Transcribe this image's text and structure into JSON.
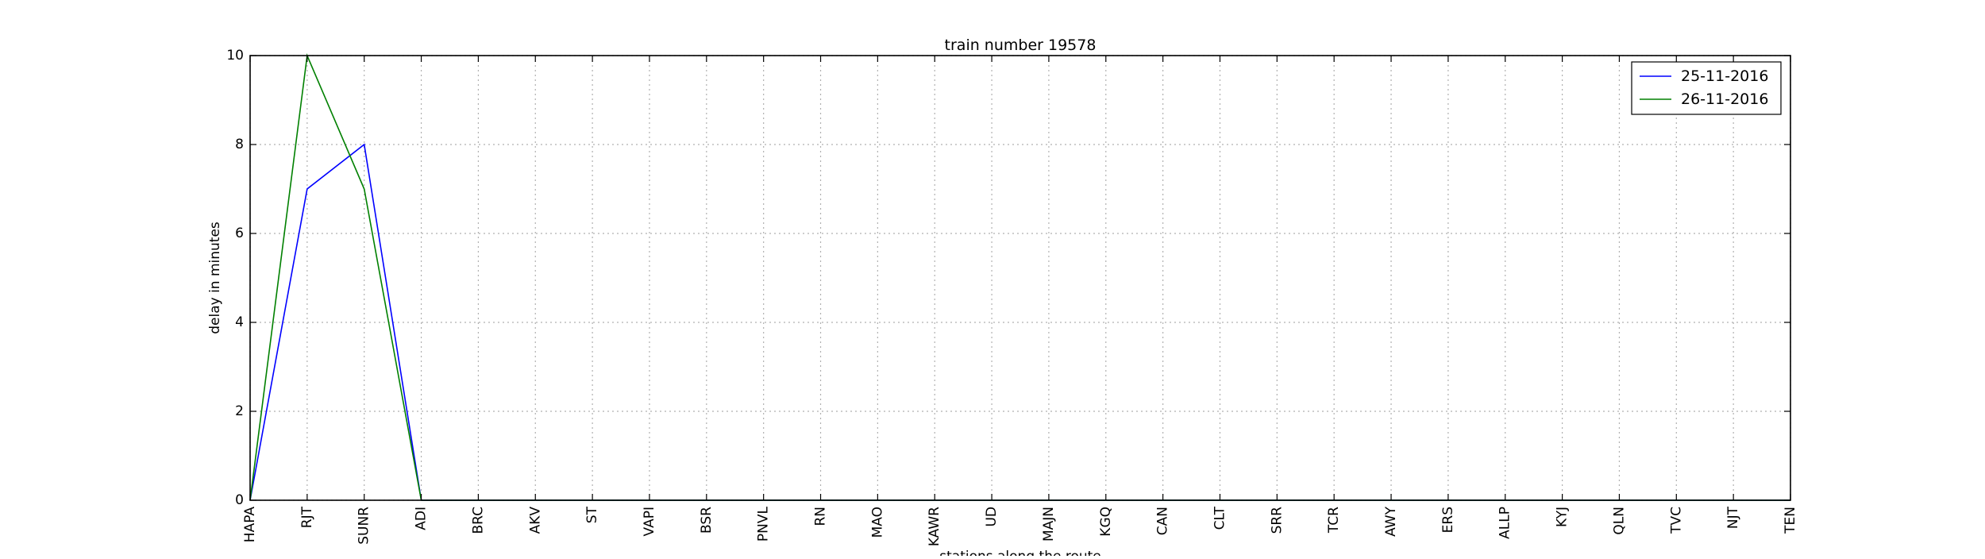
{
  "chart_data": {
    "type": "line",
    "title": "train number 19578",
    "xlabel": "stations along the route",
    "ylabel": "delay in minutes",
    "categories": [
      "HAPA",
      "RJT",
      "SUNR",
      "ADI",
      "BRC",
      "AKV",
      "ST",
      "VAPI",
      "BSR",
      "PNVL",
      "RN",
      "MAO",
      "KAWR",
      "UD",
      "MAJN",
      "KGQ",
      "CAN",
      "CLT",
      "SRR",
      "TCR",
      "AWY",
      "ERS",
      "ALLP",
      "KYJ",
      "QLN",
      "TVC",
      "NJT",
      "TEN"
    ],
    "series": [
      {
        "name": "25-11-2016",
        "color": "#0000ff",
        "values": [
          0,
          7,
          8,
          0,
          0,
          0,
          0,
          0,
          0,
          0,
          0,
          0,
          0,
          0,
          0,
          0,
          0,
          0,
          0,
          0,
          0,
          0,
          0,
          0,
          0,
          0,
          0,
          0
        ]
      },
      {
        "name": "26-11-2016",
        "color": "#008000",
        "values": [
          0,
          10,
          7,
          0,
          0,
          0,
          0,
          0,
          0,
          0,
          0,
          0,
          0,
          0,
          0,
          0,
          0,
          0,
          0,
          0,
          0,
          0,
          0,
          0,
          0,
          0,
          0,
          0
        ]
      }
    ],
    "ylim": [
      0,
      10
    ],
    "yticks": [
      0,
      2,
      4,
      6,
      8,
      10
    ],
    "grid": true,
    "legend_position": "top-right"
  }
}
